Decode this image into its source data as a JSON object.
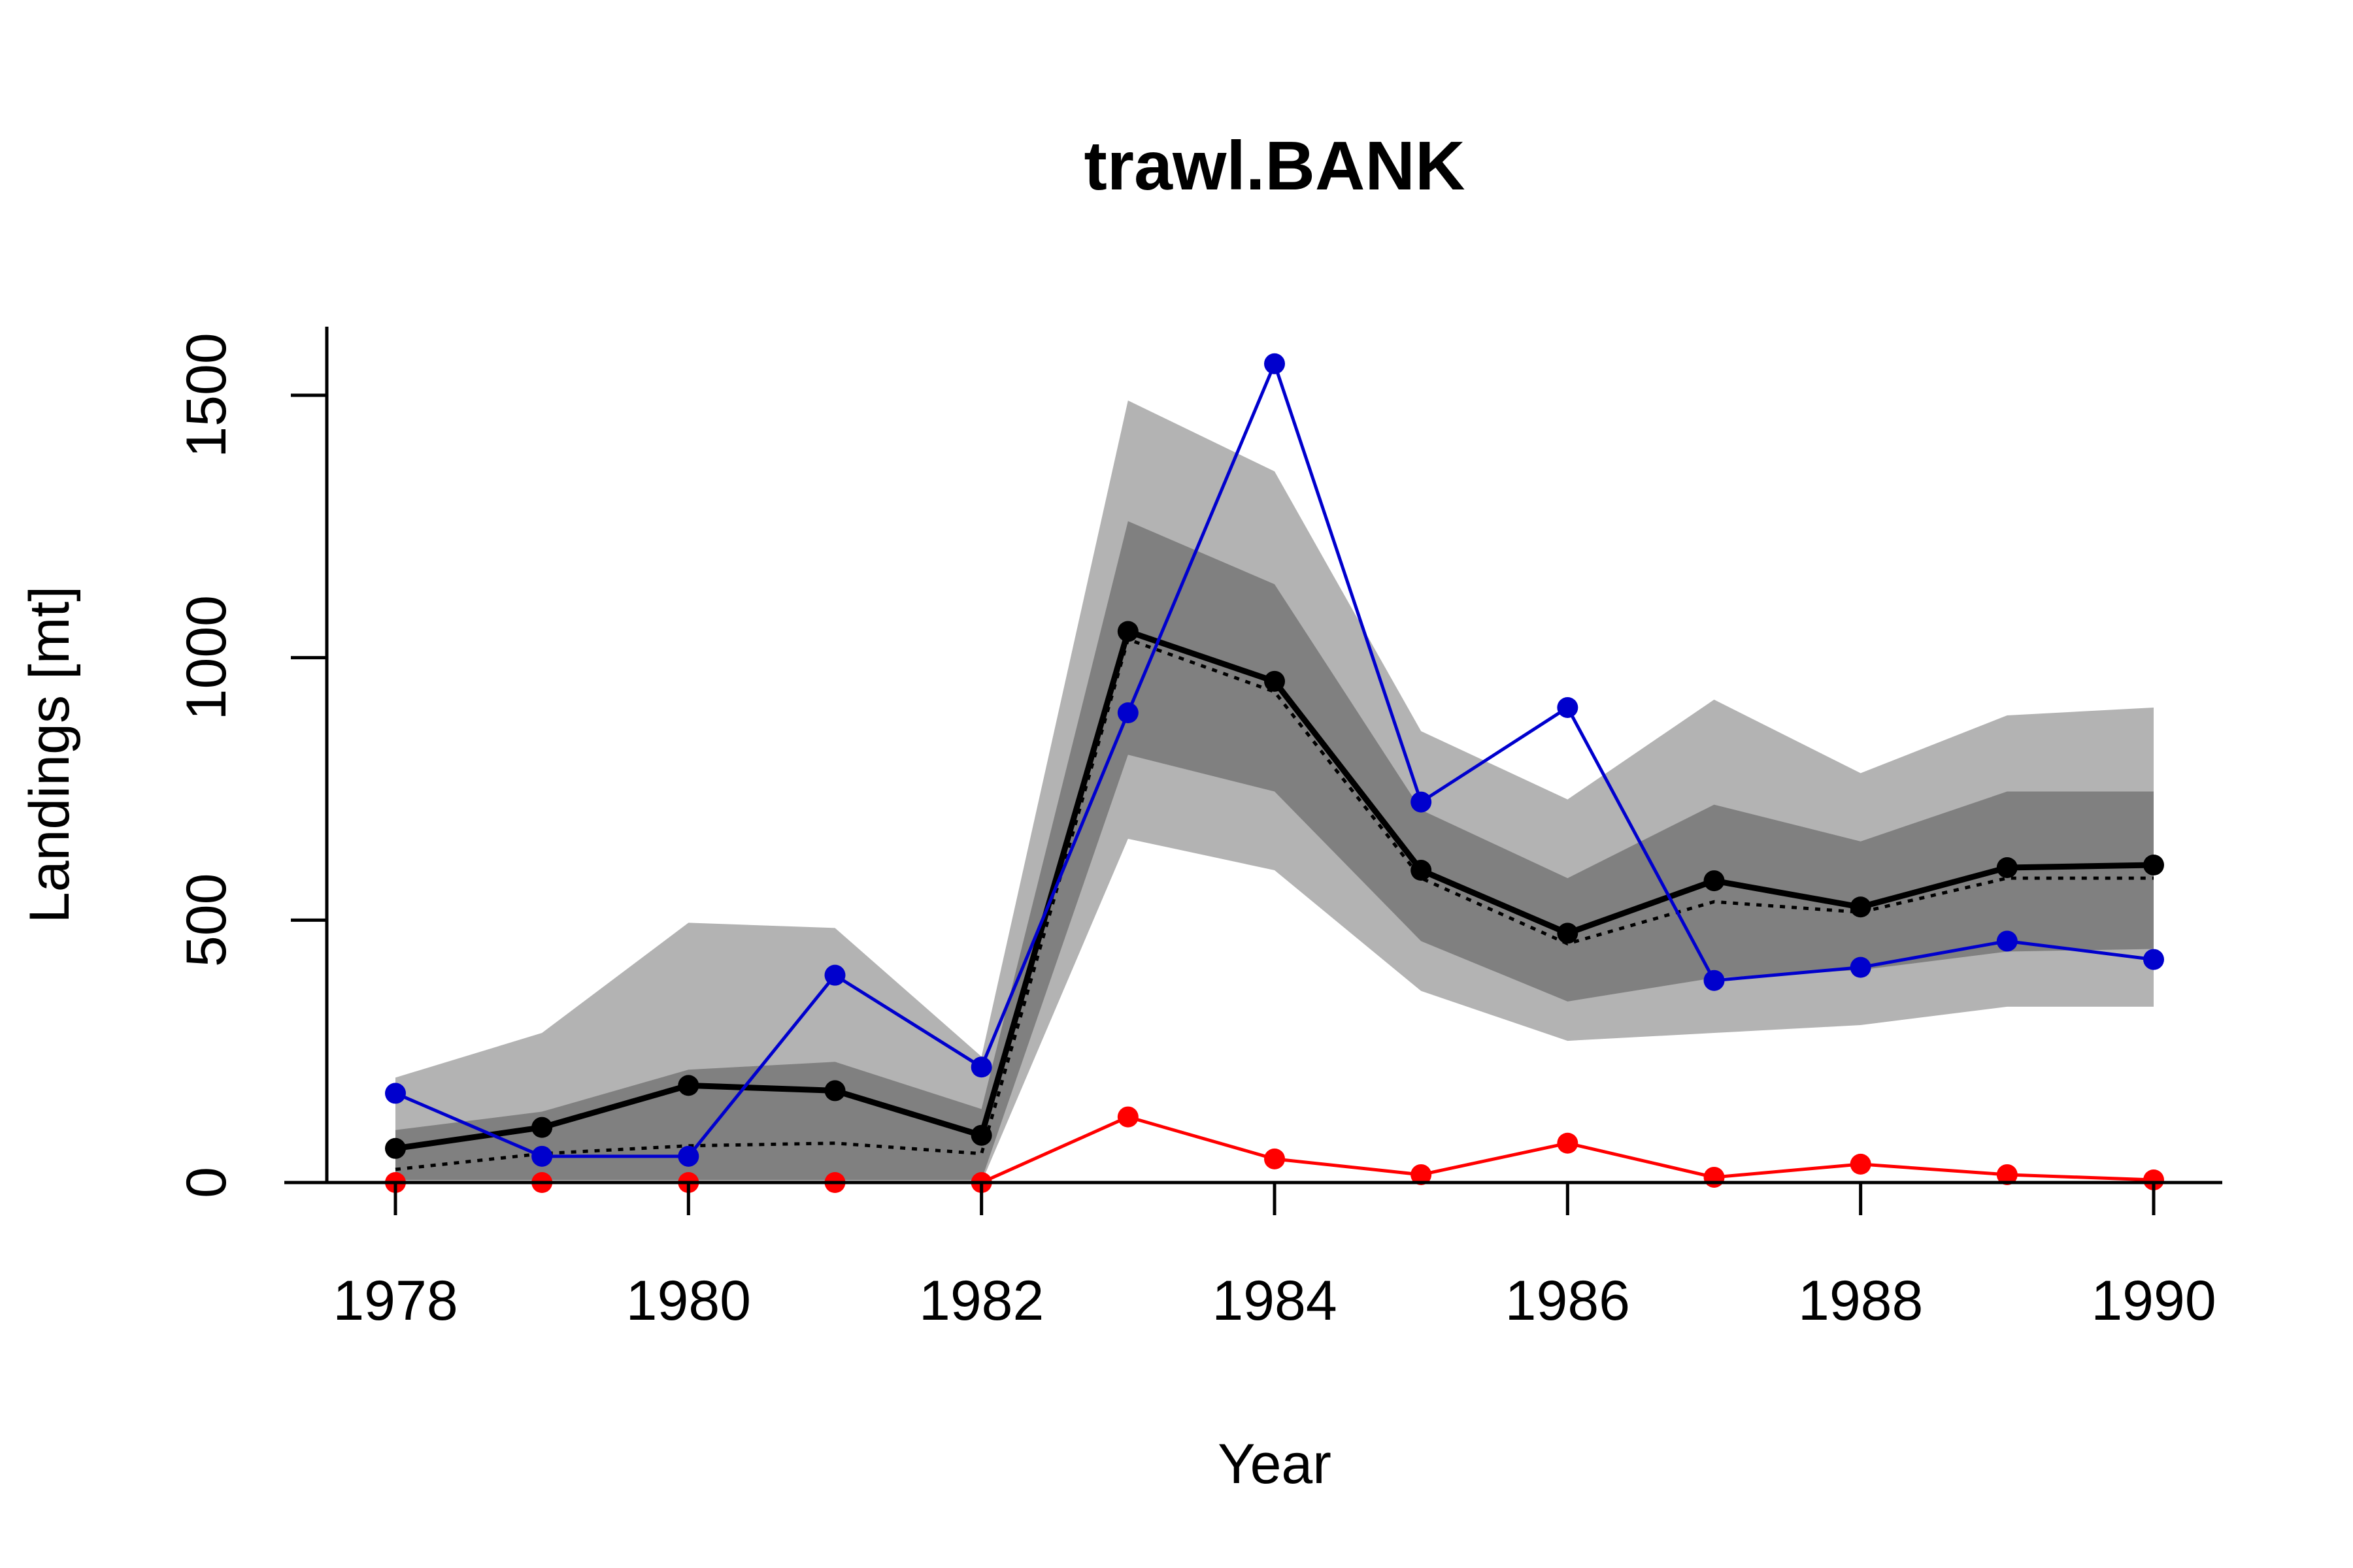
{
  "chart_data": {
    "type": "line",
    "title": "trawl.BANK",
    "xlabel": "Year",
    "ylabel": "Landings [mt]",
    "xlim": [
      1977.5,
      1990.5
    ],
    "ylim": [
      0,
      1640
    ],
    "x_ticks": [
      1978,
      1980,
      1982,
      1984,
      1986,
      1988,
      1990
    ],
    "y_ticks": [
      0,
      500,
      1000,
      1500
    ],
    "x": [
      1978,
      1979,
      1980,
      1981,
      1982,
      1983,
      1984,
      1985,
      1986,
      1987,
      1988,
      1989,
      1990
    ],
    "bands": [
      {
        "level": "outer",
        "color": "#b3b3b3",
        "lower": [
          0,
          0,
          0,
          0,
          0,
          655,
          595,
          365,
          270,
          285,
          300,
          335,
          335
        ],
        "upper": [
          200,
          285,
          495,
          485,
          240,
          1490,
          1355,
          860,
          730,
          920,
          780,
          890,
          905
        ]
      },
      {
        "level": "inner",
        "color": "#808080",
        "lower": [
          5,
          5,
          5,
          5,
          5,
          815,
          745,
          460,
          345,
          390,
          405,
          440,
          445
        ],
        "upper": [
          100,
          135,
          215,
          230,
          140,
          1260,
          1140,
          710,
          580,
          720,
          650,
          745,
          745
        ]
      }
    ],
    "series": [
      {
        "color": "#000000",
        "style": "solid-points",
        "values": [
          65,
          105,
          185,
          175,
          90,
          1050,
          955,
          595,
          475,
          575,
          525,
          600,
          605
        ]
      },
      {
        "color": "#000000",
        "style": "dotted",
        "values": [
          25,
          55,
          70,
          75,
          55,
          1035,
          935,
          580,
          455,
          535,
          515,
          580,
          580
        ]
      },
      {
        "color": "#0000cd",
        "style": "solid-points",
        "values": [
          170,
          50,
          50,
          395,
          220,
          895,
          1560,
          725,
          905,
          385,
          410,
          460,
          425
        ]
      },
      {
        "color": "#ff0000",
        "style": "solid-points",
        "values": [
          0,
          0,
          0,
          0,
          0,
          125,
          45,
          15,
          75,
          10,
          35,
          15,
          5
        ]
      }
    ],
    "grid": false,
    "legend": "none"
  }
}
